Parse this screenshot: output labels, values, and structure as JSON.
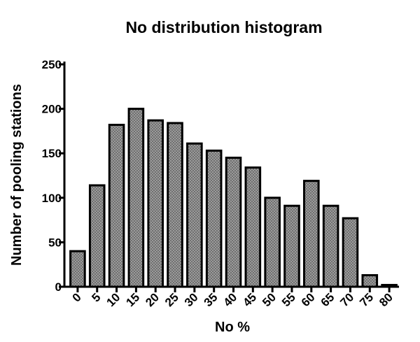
{
  "chart_data": {
    "type": "bar",
    "title": "No distribution histogram",
    "x_label": "No %",
    "y_label": "Number of pooling stations",
    "categories": [
      "0",
      "5",
      "10",
      "15",
      "20",
      "25",
      "30",
      "35",
      "40",
      "45",
      "50",
      "55",
      "60",
      "65",
      "70",
      "75",
      "80"
    ],
    "values": [
      40,
      114,
      182,
      200,
      187,
      184,
      161,
      153,
      145,
      134,
      100,
      91,
      119,
      91,
      77,
      13,
      2
    ],
    "color": "#a0a0a0",
    "ylim": [
      0,
      250
    ],
    "yticks": [
      0,
      50,
      100,
      150,
      200,
      250
    ],
    "grid": false
  }
}
